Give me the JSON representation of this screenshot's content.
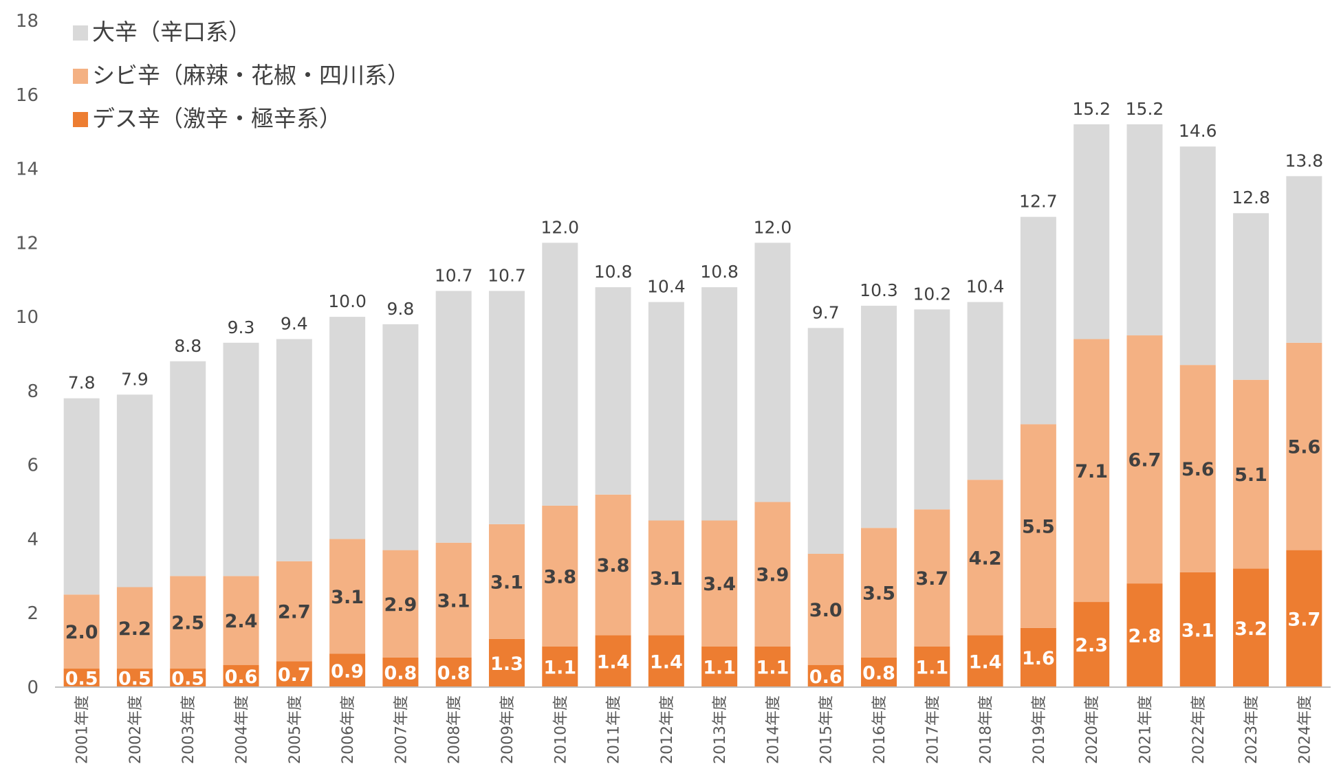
{
  "chart_data": {
    "type": "bar",
    "stacked": true,
    "title": "",
    "xlabel": "",
    "ylabel": "",
    "ylim": [
      0,
      18
    ],
    "y_ticks": [
      "0",
      "2",
      "4",
      "6",
      "8",
      "10",
      "12",
      "14",
      "16",
      "18"
    ],
    "grid": false,
    "legend_position": "top-left",
    "categories": [
      "2001年度",
      "2002年度",
      "2003年度",
      "2004年度",
      "2005年度",
      "2006年度",
      "2007年度",
      "2008年度",
      "2009年度",
      "2010年度",
      "2011年度",
      "2012年度",
      "2013年度",
      "2014年度",
      "2015年度",
      "2016年度",
      "2017年度",
      "2018年度",
      "2019年度",
      "2020年度",
      "2021年度",
      "2022年度",
      "2023年度",
      "2024年度"
    ],
    "series": [
      {
        "name": "デス辛（激辛・極辛系）",
        "color": "#ED7D31",
        "label_color": "#FFFFFF",
        "values": [
          0.5,
          0.5,
          0.5,
          0.6,
          0.7,
          0.9,
          0.8,
          0.8,
          1.3,
          1.1,
          1.4,
          1.4,
          1.1,
          1.1,
          0.6,
          0.8,
          1.1,
          1.4,
          1.6,
          2.3,
          2.8,
          3.1,
          3.2,
          3.7
        ],
        "labels": [
          "0.5",
          "0.5",
          "0.5",
          "0.6",
          "0.7",
          "0.9",
          "0.8",
          "0.8",
          "1.3",
          "1.1",
          "1.4",
          "1.4",
          "1.1",
          "1.1",
          "0.6",
          "0.8",
          "1.1",
          "1.4",
          "1.6",
          "2.3",
          "2.8",
          "3.1",
          "3.2",
          "3.7"
        ]
      },
      {
        "name": "シビ辛（麻辣・花椒・四川系）",
        "color": "#F4B183",
        "label_color": "#404040",
        "values": [
          2.0,
          2.2,
          2.5,
          2.4,
          2.7,
          3.1,
          2.9,
          3.1,
          3.1,
          3.8,
          3.8,
          3.1,
          3.4,
          3.9,
          3.0,
          3.5,
          3.7,
          4.2,
          5.5,
          7.1,
          6.7,
          5.6,
          5.1,
          5.6
        ],
        "labels": [
          "2.0",
          "2.2",
          "2.5",
          "2.4",
          "2.7",
          "3.1",
          "2.9",
          "3.1",
          "3.1",
          "3.8",
          "3.8",
          "3.1",
          "3.4",
          "3.9",
          "3.0",
          "3.5",
          "3.7",
          "4.2",
          "5.5",
          "7.1",
          "6.7",
          "5.6",
          "5.1",
          "5.6"
        ]
      },
      {
        "name": "大辛（辛口系）",
        "color": "#D9D9D9",
        "label_color": "#404040",
        "values": [
          5.3,
          5.2,
          5.8,
          6.3,
          6.0,
          6.0,
          6.1,
          6.8,
          6.3,
          7.1,
          5.6,
          5.9,
          6.3,
          7.0,
          6.1,
          6.0,
          5.4,
          4.8,
          5.6,
          5.8,
          5.7,
          5.9,
          4.5,
          4.5
        ],
        "labels": []
      }
    ],
    "totals": [
      7.8,
      7.9,
      8.8,
      9.3,
      9.4,
      10.0,
      9.8,
      10.7,
      10.7,
      12.0,
      10.8,
      10.4,
      10.8,
      12.0,
      9.7,
      10.3,
      10.2,
      10.4,
      12.7,
      15.2,
      15.2,
      14.6,
      12.8,
      13.8
    ],
    "total_labels": [
      "7.8",
      "7.9",
      "8.8",
      "9.3",
      "9.4",
      "10.0",
      "9.8",
      "10.7",
      "10.7",
      "12.0",
      "10.8",
      "10.4",
      "10.8",
      "12.0",
      "9.7",
      "10.3",
      "10.2",
      "10.4",
      "12.7",
      "15.2",
      "15.2",
      "14.6",
      "12.8",
      "13.8"
    ],
    "legend_order": [
      "大辛（辛口系）",
      "シビ辛（麻辣・花椒・四川系）",
      "デス辛（激辛・極辛系）"
    ]
  }
}
